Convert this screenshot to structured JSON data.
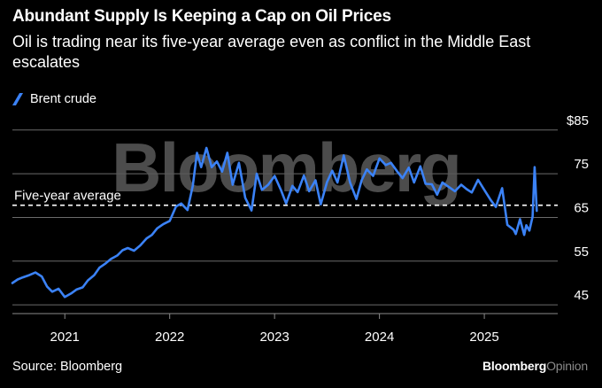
{
  "header": {
    "title": "Abundant Supply Is Keeping a Cap on Oil Prices",
    "subtitle": "Oil is trading near its five-year average even as conflict in the Middle East escalates"
  },
  "legend": {
    "label": "Brent crude",
    "color": "#3b82f6"
  },
  "footer": {
    "source": "Source: Bloomberg",
    "brand_main": "Bloomberg",
    "brand_suffix": "Opinion"
  },
  "watermark": "Bloomberg",
  "chart_data": {
    "type": "line",
    "title": "Abundant Supply Is Keeping a Cap on Oil Prices",
    "xlabel": "",
    "ylabel": "",
    "y_unit_prefix": "$",
    "ylim": [
      43,
      88
    ],
    "y_ticks": [
      45,
      55,
      65,
      75,
      85
    ],
    "y_tick_labels": [
      "45",
      "55",
      "65",
      "75",
      "$85"
    ],
    "xlim": [
      2020.5,
      2025.7
    ],
    "x_ticks": [
      2021,
      2022,
      2023,
      2024,
      2025
    ],
    "x_tick_labels": [
      "2021",
      "2022",
      "2023",
      "2024",
      "2025"
    ],
    "grid": true,
    "reference_line": {
      "label": "Five-year average",
      "value": 67.8
    },
    "series": [
      {
        "name": "Brent crude",
        "color": "#3b82f6",
        "x": [
          2020.5,
          2020.55,
          2020.6,
          2020.66,
          2020.72,
          2020.78,
          2020.83,
          2020.88,
          2020.94,
          2021.0,
          2021.06,
          2021.11,
          2021.17,
          2021.22,
          2021.28,
          2021.33,
          2021.39,
          2021.44,
          2021.5,
          2021.55,
          2021.6,
          2021.66,
          2021.72,
          2021.78,
          2021.83,
          2021.88,
          2021.94,
          2022.0,
          2022.06,
          2022.11,
          2022.17,
          2022.22,
          2022.26,
          2022.3,
          2022.35,
          2022.4,
          2022.45,
          2022.5,
          2022.55,
          2022.6,
          2022.66,
          2022.72,
          2022.78,
          2022.83,
          2022.88,
          2022.94,
          2023.0,
          2023.06,
          2023.11,
          2023.17,
          2023.22,
          2023.28,
          2023.33,
          2023.39,
          2023.44,
          2023.5,
          2023.55,
          2023.6,
          2023.66,
          2023.72,
          2023.78,
          2023.83,
          2023.88,
          2023.94,
          2024.0,
          2024.06,
          2024.11,
          2024.17,
          2024.22,
          2024.28,
          2024.33,
          2024.39,
          2024.44,
          2024.5,
          2024.55,
          2024.6,
          2024.66,
          2024.72,
          2024.78,
          2024.83,
          2024.88,
          2024.94,
          2025.0,
          2025.06,
          2025.11,
          2025.17,
          2025.22,
          2025.28,
          2025.3,
          2025.34,
          2025.38,
          2025.4,
          2025.43,
          2025.46,
          2025.48,
          2025.5
        ],
        "values": [
          50.0,
          50.8,
          51.3,
          51.8,
          52.4,
          51.5,
          49.2,
          48.0,
          48.7,
          46.8,
          47.6,
          48.5,
          49.0,
          50.6,
          51.8,
          53.5,
          54.5,
          55.5,
          56.3,
          57.5,
          58.0,
          57.4,
          58.6,
          60.2,
          61.0,
          62.5,
          63.5,
          64.2,
          67.5,
          68.2,
          66.7,
          72.3,
          79.8,
          76.5,
          80.9,
          76.5,
          77.8,
          75.5,
          79.8,
          72.5,
          77.5,
          69.5,
          66.6,
          75.0,
          71.3,
          72.5,
          74.5,
          71.3,
          68.2,
          72.2,
          70.8,
          74.6,
          71.0,
          73.5,
          68.0,
          73.1,
          75.7,
          73.0,
          79.2,
          73.0,
          69.2,
          73.5,
          76.0,
          74.5,
          78.5,
          77.0,
          77.5,
          75.5,
          74.0,
          76.4,
          73.0,
          76.7,
          72.7,
          72.6,
          70.2,
          73.0,
          72.0,
          71.0,
          72.5,
          71.5,
          70.7,
          73.6,
          71.3,
          69.0,
          67.4,
          71.7,
          63.3,
          62.2,
          61.2,
          64.6,
          61.0,
          63.2,
          62.0,
          65.2,
          76.5,
          66.5
        ]
      }
    ]
  }
}
